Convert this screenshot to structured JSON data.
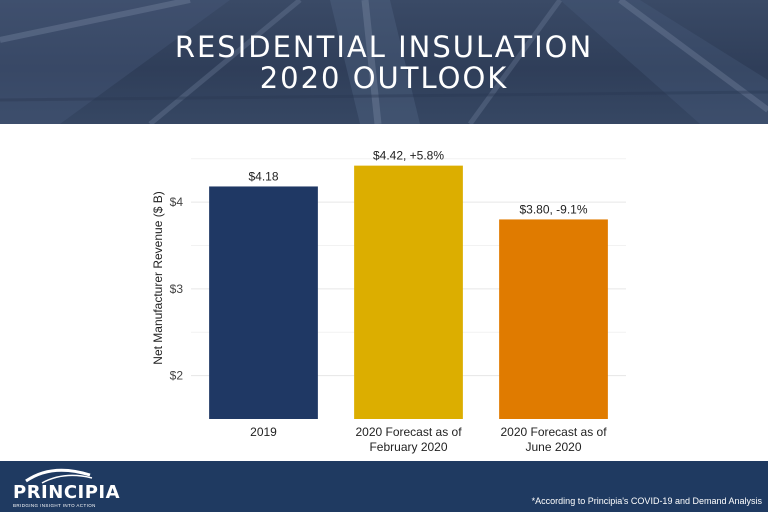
{
  "header": {
    "title_line1": "RESIDENTIAL INSULATION",
    "title_line2": "2020 OUTLOOK"
  },
  "chart_data": {
    "type": "bar",
    "title": "",
    "xlabel": "",
    "ylabel": "Net Manufacturer Revenue ($ B)",
    "categories": [
      [
        "2019"
      ],
      [
        "2020 Forecast as of",
        "February 2020"
      ],
      [
        "2020 Forecast as of",
        "June 2020"
      ]
    ],
    "values": [
      4.18,
      4.42,
      3.8
    ],
    "data_labels": [
      "$4.18",
      "$4.42, +5.8%",
      "$3.80, -9.1%"
    ],
    "colors": [
      "#1f3864",
      "#dcae00",
      "#e07b00"
    ],
    "ylim": [
      1.5,
      4.75
    ],
    "yticks": [
      2,
      3,
      4
    ],
    "ytick_labels": [
      "$2",
      "$3",
      "$4"
    ],
    "grid": true
  },
  "footer": {
    "logo_text": "PRINCIPIA",
    "logo_tagline": "BRIDGING INSIGHT INTO ACTION",
    "footnote": "*According to Principia's COVID-19 and Demand Analysis"
  }
}
